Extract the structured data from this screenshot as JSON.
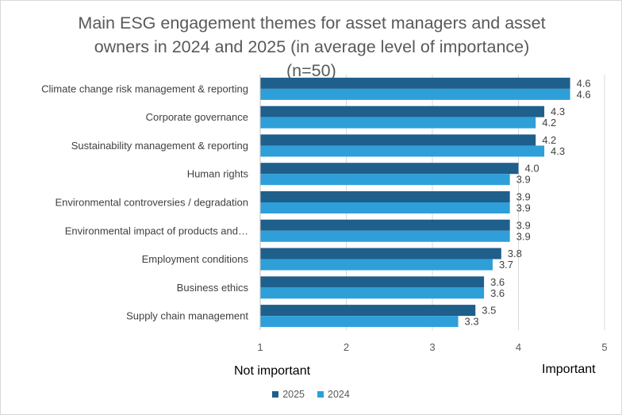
{
  "chart_data": {
    "type": "bar",
    "orientation": "horizontal",
    "title_line1": "Main ESG engagement themes for asset managers and asset",
    "title_line2": "owners in 2024 and 2025 (in average level of importance)",
    "title_line3": "(n=50)",
    "categories": [
      "Climate change risk management & reporting",
      "Corporate governance",
      "Sustainability management & reporting",
      "Human rights",
      "Environmental controversies / degradation",
      "Environmental impact of products and…",
      "Employment conditions",
      "Business ethics",
      "Supply chain management"
    ],
    "series": [
      {
        "name": "2025",
        "color": "#1f5f8b",
        "values": [
          4.6,
          4.3,
          4.2,
          4.0,
          3.9,
          3.9,
          3.8,
          3.6,
          3.5
        ]
      },
      {
        "name": "2024",
        "color": "#2e9fd8",
        "values": [
          4.6,
          4.2,
          4.3,
          3.9,
          3.9,
          3.9,
          3.7,
          3.6,
          3.3
        ]
      }
    ],
    "value_labels": [
      [
        "4.6",
        "4.3",
        "4.2",
        "4.0",
        "3.9",
        "3.9",
        "3.8",
        "3.6",
        "3.5"
      ],
      [
        "4.6",
        "4.2",
        "4.3",
        "3.9",
        "3.9",
        "3.9",
        "3.7",
        "3.6",
        "3.3"
      ]
    ],
    "xlim": [
      1,
      5
    ],
    "xticks": [
      "1",
      "2",
      "3",
      "4",
      "5"
    ],
    "grid": "vertical",
    "legend_position": "bottom",
    "annotation_left": "Not important",
    "annotation_right": "Important"
  }
}
